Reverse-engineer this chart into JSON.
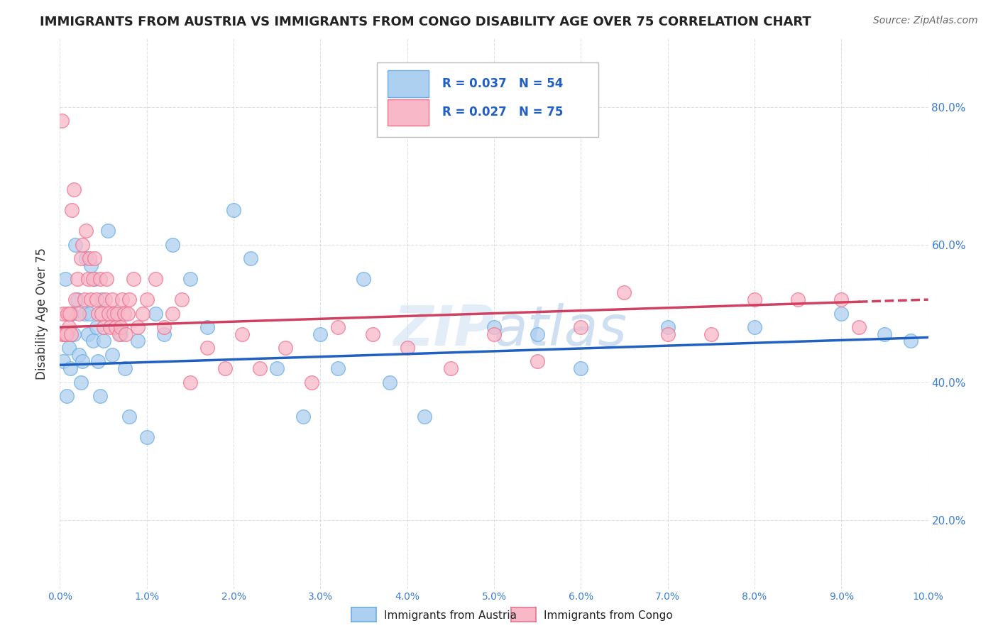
{
  "title": "IMMIGRANTS FROM AUSTRIA VS IMMIGRANTS FROM CONGO DISABILITY AGE OVER 75 CORRELATION CHART",
  "source": "Source: ZipAtlas.com",
  "ylabel": "Disability Age Over 75",
  "xlim": [
    0.0,
    10.0
  ],
  "ylim": [
    10.0,
    90.0
  ],
  "ytick_vals": [
    20.0,
    40.0,
    60.0,
    80.0
  ],
  "xtick_vals": [
    0,
    1,
    2,
    3,
    4,
    5,
    6,
    7,
    8,
    9,
    10
  ],
  "series_austria": {
    "label": "Immigrants from Austria",
    "R": 0.037,
    "N": 54,
    "color": "#6aade4",
    "color_fill": "#aed0f0"
  },
  "series_congo": {
    "label": "Immigrants from Congo",
    "R": 0.027,
    "N": 75,
    "color": "#f07090",
    "color_fill": "#f8b8c8"
  },
  "background_color": "#ffffff",
  "grid_color": "#cccccc",
  "watermark": "ZIPatlas",
  "austria_x": [
    0.04,
    0.06,
    0.08,
    0.1,
    0.12,
    0.14,
    0.16,
    0.18,
    0.2,
    0.22,
    0.24,
    0.26,
    0.28,
    0.3,
    0.32,
    0.34,
    0.36,
    0.38,
    0.4,
    0.42,
    0.44,
    0.46,
    0.48,
    0.5,
    0.55,
    0.6,
    0.65,
    0.7,
    0.75,
    0.8,
    0.9,
    1.0,
    1.1,
    1.2,
    1.3,
    1.5,
    1.7,
    2.0,
    2.2,
    2.5,
    2.8,
    3.0,
    3.2,
    3.5,
    3.8,
    4.2,
    5.0,
    5.5,
    6.0,
    7.0,
    8.0,
    9.0,
    9.5,
    9.8
  ],
  "austria_y": [
    43,
    55,
    38,
    45,
    42,
    50,
    47,
    60,
    52,
    44,
    40,
    43,
    50,
    58,
    47,
    50,
    57,
    46,
    55,
    48,
    43,
    38,
    52,
    46,
    62,
    44,
    50,
    47,
    42,
    35,
    46,
    32,
    50,
    47,
    60,
    55,
    48,
    65,
    58,
    42,
    35,
    47,
    42,
    55,
    40,
    35,
    48,
    47,
    42,
    48,
    48,
    50,
    47,
    46
  ],
  "congo_x": [
    0.02,
    0.04,
    0.06,
    0.08,
    0.1,
    0.12,
    0.14,
    0.16,
    0.18,
    0.2,
    0.22,
    0.24,
    0.26,
    0.28,
    0.3,
    0.32,
    0.34,
    0.36,
    0.38,
    0.4,
    0.42,
    0.44,
    0.46,
    0.48,
    0.5,
    0.52,
    0.54,
    0.56,
    0.58,
    0.6,
    0.62,
    0.64,
    0.66,
    0.68,
    0.7,
    0.72,
    0.74,
    0.76,
    0.78,
    0.8,
    0.85,
    0.9,
    0.95,
    1.0,
    1.1,
    1.2,
    1.3,
    1.4,
    1.5,
    1.7,
    1.9,
    2.1,
    2.3,
    2.6,
    2.9,
    3.2,
    3.6,
    4.0,
    4.5,
    5.0,
    5.5,
    6.0,
    6.5,
    7.0,
    7.5,
    8.0,
    8.5,
    9.0,
    9.2,
    0.03,
    0.05,
    0.07,
    0.09,
    0.11,
    0.13
  ],
  "congo_y": [
    78,
    50,
    47,
    47,
    48,
    50,
    65,
    68,
    52,
    55,
    50,
    58,
    60,
    52,
    62,
    55,
    58,
    52,
    55,
    58,
    52,
    50,
    55,
    50,
    48,
    52,
    55,
    50,
    48,
    52,
    50,
    48,
    50,
    47,
    48,
    52,
    50,
    47,
    50,
    52,
    55,
    48,
    50,
    52,
    55,
    48,
    50,
    52,
    40,
    45,
    42,
    47,
    42,
    45,
    40,
    48,
    47,
    45,
    42,
    47,
    43,
    48,
    53,
    47,
    47,
    52,
    52,
    52,
    48,
    47,
    47,
    47,
    50,
    50,
    47
  ]
}
